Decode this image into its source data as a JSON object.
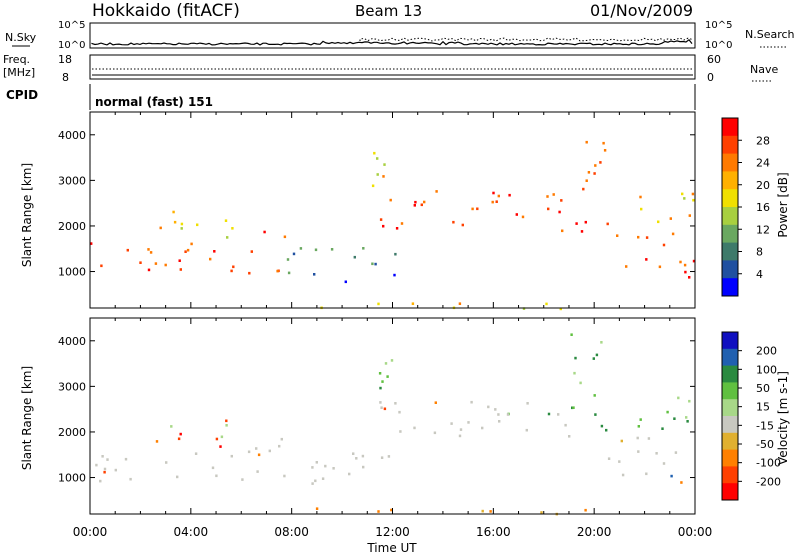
{
  "header": {
    "station": "Hokkaido (fitACF)",
    "beam": "Beam 13",
    "date": "01/Nov/2009"
  },
  "params": {
    "nsky_label": "N.Sky",
    "nsearch_label": "N.Search",
    "noise_ticks_left": [
      "10^5",
      "10^0"
    ],
    "noise_ticks_right": [
      "10^5",
      "10^0"
    ],
    "freq_label_top": "Freq.",
    "freq_label_unit": "[MHz]",
    "freq_ticks": [
      "18",
      "8"
    ],
    "nave_label": "Nave",
    "nave_ticks": [
      "60",
      "0"
    ],
    "cpid_label": "CPID",
    "cpid_value": "normal (fast) 151"
  },
  "chart_data": [
    {
      "type": "heatmap",
      "quantity": "power",
      "ylabel": "Slant Range [km]",
      "xlabel": "Time UT",
      "x_ticks": [
        "00:00",
        "04:00",
        "08:00",
        "12:00",
        "16:00",
        "20:00",
        "00:00"
      ],
      "y_ticks": [
        1000,
        2000,
        3000,
        4000
      ],
      "ylim": [
        200,
        4500
      ],
      "xlim_hours": [
        0,
        24
      ],
      "colorbar": {
        "label": "Power [dB]",
        "ticks": [
          "28",
          "24",
          "20",
          "16",
          "12",
          "8",
          "4"
        ],
        "colors": [
          "#ff0000",
          "#ff4000",
          "#ff7a00",
          "#ffb000",
          "#f0e000",
          "#a8d040",
          "#6aa860",
          "#3e7a6a",
          "#2050a0",
          "#0000ff"
        ]
      },
      "echo_regions": [
        {
          "t0": 0.0,
          "t1": 6.9,
          "r0": 950,
          "r1": 1700,
          "level": "high"
        },
        {
          "t0": 2.5,
          "t1": 5.8,
          "r0": 1700,
          "r1": 2400,
          "level": "mid"
        },
        {
          "t0": 6.8,
          "t1": 7.8,
          "r0": 900,
          "r1": 1900,
          "level": "high"
        },
        {
          "t0": 7.8,
          "t1": 12.5,
          "r0": 800,
          "r1": 1600,
          "level": "low"
        },
        {
          "t0": 11.3,
          "t1": 19.0,
          "r0": 1900,
          "r1": 2800,
          "level": "high"
        },
        {
          "t0": 11.0,
          "t1": 12.5,
          "r0": 2700,
          "r1": 3700,
          "level": "mid"
        },
        {
          "t0": 19.0,
          "t1": 20.5,
          "r0": 1900,
          "r1": 4200,
          "level": "high"
        },
        {
          "t0": 20.5,
          "t1": 24.0,
          "r0": 900,
          "r1": 1900,
          "level": "high"
        },
        {
          "t0": 21.5,
          "t1": 24.0,
          "r0": 2100,
          "r1": 3000,
          "level": "mid"
        },
        {
          "t0": 5.5,
          "t1": 20.0,
          "r0": 200,
          "r1": 350,
          "level": "mid"
        }
      ]
    },
    {
      "type": "heatmap",
      "quantity": "velocity",
      "ylabel": "Slant Range [km]",
      "xlabel": "Time UT",
      "x_ticks": [
        "00:00",
        "04:00",
        "08:00",
        "12:00",
        "16:00",
        "20:00",
        "00:00"
      ],
      "y_ticks": [
        1000,
        2000,
        3000,
        4000
      ],
      "ylim": [
        200,
        4500
      ],
      "xlim_hours": [
        0,
        24
      ],
      "colorbar": {
        "label": "Velocity [m s-1]",
        "ticks": [
          "200",
          "100",
          "50",
          "15",
          "-15",
          "-50",
          "-100",
          "-200"
        ],
        "colors": [
          "#1010c0",
          "#2060b0",
          "#2a8a40",
          "#60c040",
          "#a8d888",
          "#c8c8c0",
          "#e0b030",
          "#ff8000",
          "#ff4000",
          "#ff0000"
        ]
      },
      "echo_regions": [
        {
          "t0": 0.0,
          "t1": 6.9,
          "r0": 950,
          "r1": 1700,
          "level": "gray"
        },
        {
          "t0": 2.5,
          "t1": 5.8,
          "r0": 1700,
          "r1": 2400,
          "level": "speck"
        },
        {
          "t0": 6.8,
          "t1": 7.8,
          "r0": 900,
          "r1": 1900,
          "level": "gray"
        },
        {
          "t0": 7.8,
          "t1": 12.5,
          "r0": 800,
          "r1": 1600,
          "level": "gray"
        },
        {
          "t0": 11.3,
          "t1": 19.0,
          "r0": 1900,
          "r1": 2800,
          "level": "gray"
        },
        {
          "t0": 11.0,
          "t1": 12.5,
          "r0": 2700,
          "r1": 3700,
          "level": "green"
        },
        {
          "t0": 19.0,
          "t1": 20.5,
          "r0": 1900,
          "r1": 4200,
          "level": "green"
        },
        {
          "t0": 20.5,
          "t1": 24.0,
          "r0": 900,
          "r1": 1900,
          "level": "gray"
        },
        {
          "t0": 21.5,
          "t1": 24.0,
          "r0": 2100,
          "r1": 3000,
          "level": "green"
        },
        {
          "t0": 5.5,
          "t1": 20.0,
          "r0": 200,
          "r1": 350,
          "level": "orange"
        }
      ]
    }
  ]
}
